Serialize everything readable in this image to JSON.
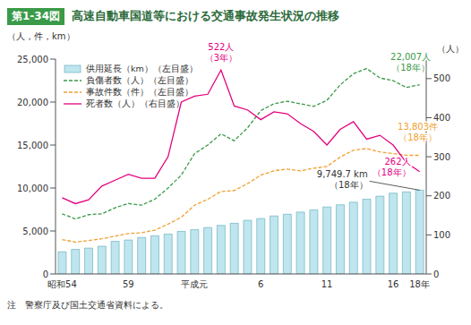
{
  "chart_data": {
    "type": "combo",
    "figure_number": "第1-34図",
    "title": "高速自動車国道等における交通事故発生状況の推移",
    "y_label": "（人，件，km）",
    "y2_label": "（人）",
    "note": "注　警察庁及び国土交通省資料による。",
    "categories": [
      "昭和54",
      null,
      null,
      null,
      null,
      "59",
      null,
      null,
      null,
      null,
      "平成元",
      null,
      null,
      null,
      null,
      "6",
      null,
      null,
      null,
      null,
      "11",
      null,
      null,
      null,
      null,
      "16",
      null,
      "18年"
    ],
    "series": [
      {
        "name": "供用延長（km）（左目盛）",
        "type": "bar",
        "color": "#bfe5ee",
        "values": [
          2579,
          2860,
          3010,
          3232,
          3800,
          3950,
          4250,
          4450,
          4650,
          4950,
          5150,
          5400,
          5650,
          5900,
          6250,
          6450,
          6750,
          6950,
          7200,
          7450,
          7800,
          8050,
          8350,
          8700,
          9050,
          9400,
          9550,
          9749.7
        ]
      },
      {
        "name": "負傷者数（人）（左目盛）",
        "type": "line",
        "line_style": "dashed",
        "color": "#3a9a48",
        "values": [
          7000,
          6400,
          6900,
          7000,
          7700,
          8200,
          8000,
          8700,
          10000,
          11500,
          14000,
          15000,
          16300,
          15500,
          17000,
          19000,
          19800,
          20100,
          19800,
          19500,
          20200,
          22000,
          23300,
          23900,
          22800,
          22500,
          21700,
          22007
        ]
      },
      {
        "name": "事故件数（件）（左目盛）",
        "type": "line",
        "line_style": "dashed",
        "color": "#f0a030",
        "values": [
          4000,
          3700,
          3900,
          4100,
          4400,
          4700,
          4800,
          5100,
          5800,
          6600,
          8000,
          8700,
          9600,
          9700,
          10500,
          11500,
          12000,
          12200,
          12000,
          12300,
          12500,
          13600,
          14400,
          14600,
          14200,
          14000,
          13800,
          13803
        ]
      },
      {
        "name": "死者数（人）（右目盛）",
        "type": "line",
        "line_style": "solid",
        "color": "#e4007f",
        "axis": "y2",
        "values": [
          195,
          180,
          190,
          225,
          240,
          255,
          245,
          245,
          300,
          440,
          455,
          460,
          522,
          430,
          420,
          395,
          415,
          410,
          385,
          365,
          330,
          370,
          390,
          345,
          355,
          330,
          285,
          262
        ]
      }
    ],
    "annotations": [
      {
        "series": "死者数（人）（右目盛）",
        "value": 522,
        "text": [
          "522人",
          "（3年）"
        ]
      },
      {
        "series": "負傷者数（人）（左目盛）",
        "value": 22007,
        "text": [
          "22,007人",
          "（18年）"
        ]
      },
      {
        "series": "事故件数（件）（左目盛）",
        "value": 13803,
        "text": [
          "13,803件",
          "（18年）"
        ]
      },
      {
        "series": "死者数（人）（右目盛）",
        "value": 262,
        "text": [
          "262人",
          "（18年）"
        ]
      },
      {
        "series": "供用延長（km）（左目盛）",
        "value": 9749.7,
        "text": [
          "9,749.7 km",
          "（18年）"
        ]
      }
    ],
    "ylim": [
      0,
      25000
    ],
    "yticks": [
      0,
      {
        "value": 5000,
        "label": "5,000"
      },
      {
        "value": 10000,
        "label": "10,000"
      },
      {
        "value": 15000,
        "label": "15,000"
      },
      {
        "value": 20000,
        "label": "20,000"
      },
      {
        "value": 25000,
        "label": "25,000"
      }
    ],
    "y2lim": [
      0,
      550
    ],
    "y2ticks": [
      0,
      100,
      200,
      300,
      400,
      500
    ],
    "grid": false,
    "legend": "upper left"
  }
}
